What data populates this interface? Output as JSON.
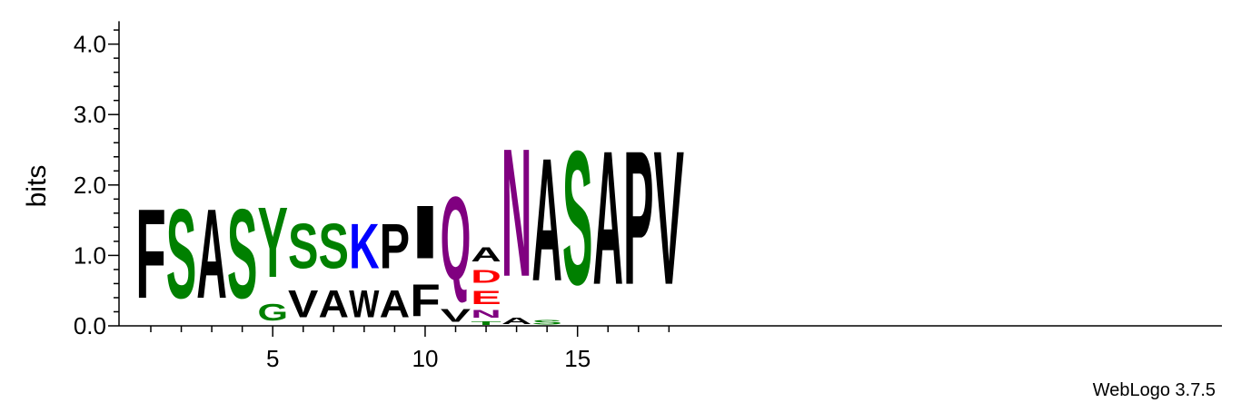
{
  "chart_data": {
    "type": "sequence-logo",
    "ylabel": "bits",
    "ylim": [
      0,
      4.3
    ],
    "yticks": [
      {
        "value": 0.0,
        "label": "0.0"
      },
      {
        "value": 1.0,
        "label": "1.0"
      },
      {
        "value": 2.0,
        "label": "2.0"
      },
      {
        "value": 3.0,
        "label": "3.0"
      },
      {
        "value": 4.0,
        "label": "4.0"
      }
    ],
    "yminor_step": 0.2,
    "xrange": [
      1,
      18
    ],
    "xticks": [
      {
        "value": 5,
        "label": "5"
      },
      {
        "value": 10,
        "label": "10"
      },
      {
        "value": 15,
        "label": "15"
      }
    ],
    "credit": "WebLogo 3.7.5",
    "colors": {
      "black": "#000000",
      "green": "#008000",
      "blue": "#0000ff",
      "red": "#ff0000",
      "purple": "#800080"
    },
    "positions": [
      {
        "pos": 1,
        "stack": [
          {
            "letter": "F",
            "bits": 2.03,
            "color": "#000000"
          }
        ]
      },
      {
        "pos": 2,
        "stack": [
          {
            "letter": "S",
            "bits": 2.03,
            "color": "#008000"
          }
        ]
      },
      {
        "pos": 3,
        "stack": [
          {
            "letter": "A",
            "bits": 2.03,
            "color": "#000000"
          }
        ]
      },
      {
        "pos": 4,
        "stack": [
          {
            "letter": "S",
            "bits": 2.03,
            "color": "#008000"
          }
        ]
      },
      {
        "pos": 5,
        "stack": [
          {
            "letter": "G",
            "bits": 0.38,
            "color": "#008000"
          },
          {
            "letter": "Y",
            "bits": 1.6,
            "color": "#008000"
          }
        ]
      },
      {
        "pos": 6,
        "stack": [
          {
            "letter": "V",
            "bits": 0.62,
            "color": "#000000"
          },
          {
            "letter": "S",
            "bits": 1.02,
            "color": "#008000"
          }
        ]
      },
      {
        "pos": 7,
        "stack": [
          {
            "letter": "A",
            "bits": 0.62,
            "color": "#000000"
          },
          {
            "letter": "S",
            "bits": 1.02,
            "color": "#008000"
          }
        ]
      },
      {
        "pos": 8,
        "stack": [
          {
            "letter": "W",
            "bits": 0.62,
            "color": "#000000"
          },
          {
            "letter": "K",
            "bits": 1.02,
            "color": "#0000ff"
          }
        ]
      },
      {
        "pos": 9,
        "stack": [
          {
            "letter": "A",
            "bits": 0.62,
            "color": "#000000"
          },
          {
            "letter": "P",
            "bits": 1.02,
            "color": "#000000"
          }
        ]
      },
      {
        "pos": 10,
        "stack": [
          {
            "letter": "F",
            "bits": 0.72,
            "color": "#000000"
          },
          {
            "letter": "I",
            "bits": 1.21,
            "color": "#000000"
          }
        ]
      },
      {
        "pos": 11,
        "stack": [
          {
            "letter": "V",
            "bits": 0.29,
            "color": "#000000"
          },
          {
            "letter": "Q",
            "bits": 1.89,
            "color": "#800080"
          }
        ]
      },
      {
        "pos": 12,
        "stack": [
          {
            "letter": "T",
            "bits": 0.08,
            "color": "#008000"
          },
          {
            "letter": "N",
            "bits": 0.17,
            "color": "#800080"
          },
          {
            "letter": "E",
            "bits": 0.3,
            "color": "#ff0000"
          },
          {
            "letter": "D",
            "bits": 0.3,
            "color": "#ff0000"
          },
          {
            "letter": "A",
            "bits": 0.32,
            "color": "#000000"
          }
        ]
      },
      {
        "pos": 13,
        "stack": [
          {
            "letter": "A",
            "bits": 0.14,
            "color": "#000000"
          },
          {
            "letter": "N",
            "bits": 2.91,
            "color": "#800080"
          }
        ]
      },
      {
        "pos": 14,
        "stack": [
          {
            "letter": "S",
            "bits": 0.1,
            "color": "#008000"
          },
          {
            "letter": "A",
            "bits": 2.79,
            "color": "#000000"
          }
        ]
      },
      {
        "pos": 15,
        "stack": [
          {
            "letter": "S",
            "bits": 3.04,
            "color": "#008000"
          }
        ]
      },
      {
        "pos": 16,
        "stack": [
          {
            "letter": "A",
            "bits": 3.04,
            "color": "#000000"
          }
        ]
      },
      {
        "pos": 17,
        "stack": [
          {
            "letter": "P",
            "bits": 3.04,
            "color": "#000000"
          }
        ]
      },
      {
        "pos": 18,
        "stack": [
          {
            "letter": "V",
            "bits": 3.04,
            "color": "#000000"
          }
        ]
      }
    ]
  }
}
